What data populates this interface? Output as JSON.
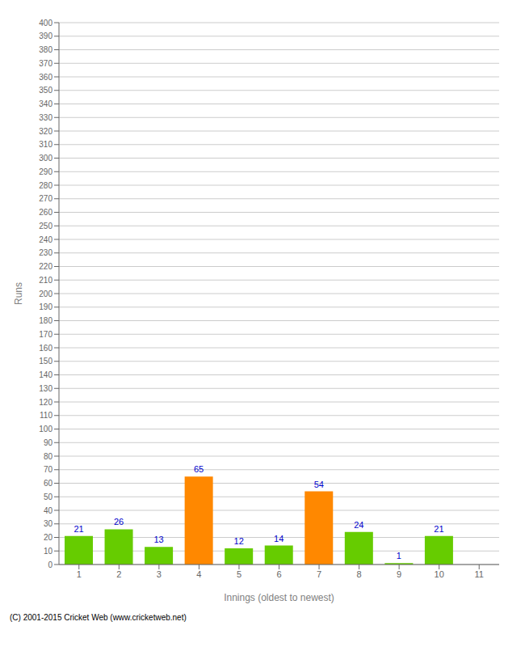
{
  "chart_data": {
    "type": "bar",
    "xlabel": "Innings (oldest to newest)",
    "ylabel": "Runs",
    "categories": [
      1,
      2,
      3,
      4,
      5,
      6,
      7,
      8,
      9,
      10,
      11
    ],
    "values": [
      21,
      26,
      13,
      65,
      12,
      14,
      54,
      24,
      1,
      21,
      0
    ],
    "colors": [
      "#66cc00",
      "#66cc00",
      "#66cc00",
      "#ff8800",
      "#66cc00",
      "#66cc00",
      "#ff8800",
      "#66cc00",
      "#66cc00",
      "#66cc00",
      "#66cc00"
    ],
    "ylim": [
      0,
      400
    ],
    "yticks": [
      0,
      10,
      20,
      30,
      40,
      50,
      60,
      70,
      80,
      90,
      100,
      110,
      120,
      130,
      140,
      150,
      160,
      170,
      180,
      190,
      200,
      210,
      220,
      230,
      240,
      250,
      260,
      270,
      280,
      290,
      300,
      310,
      320,
      330,
      340,
      350,
      360,
      370,
      380,
      390,
      400
    ],
    "grid": true,
    "data_labels": true,
    "annotations": [
      "(C) 2001-2015 Cricket Web (www.cricketweb.net)"
    ]
  }
}
